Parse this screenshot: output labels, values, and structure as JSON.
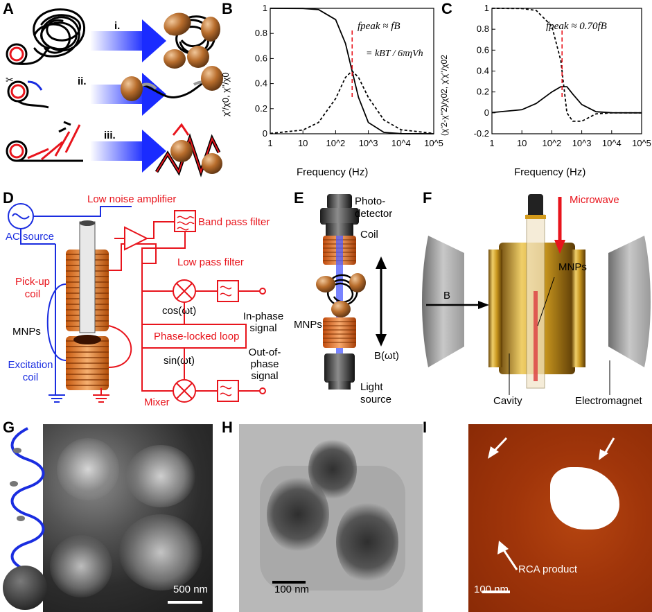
{
  "panels": {
    "A": "A",
    "B": "B",
    "C": "C",
    "D": "D",
    "E": "E",
    "F": "F",
    "G": "G",
    "H": "H",
    "I": "I"
  },
  "panelA": {
    "steps": [
      "i.",
      "ii.",
      "iii."
    ]
  },
  "panelB": {
    "ylabel": "χ'/χ0, χ''/χ0",
    "xlabel": "Frequency (Hz)",
    "annotation_line1": "fpeak ≈ fB",
    "annotation_line2": "= kBT / 6πηVh"
  },
  "panelC": {
    "ylabel": "(χ'2-χ''2)/χ02, χ'χ''/χ02",
    "xlabel": "Frequency (Hz)",
    "annotation": "fpeak ≈ 0.70fB"
  },
  "panelD": {
    "ac_source": "AC source",
    "low_noise_amplifier": "Low noise amplifier",
    "band_pass_filter": "Band pass filter",
    "low_pass_filter": "Low pass filter",
    "pickup_coil": "Pick-up coil",
    "mnps": "MNPs",
    "excitation_coil": "Excitation coil",
    "cos": "cos(ωt)",
    "in_phase": "In-phase signal",
    "pll": "Phase-locked loop",
    "sin": "sin(ωt)",
    "out_phase": "Out-of-phase signal",
    "mixer": "Mixer"
  },
  "panelE": {
    "photodetector": "Photo-detector",
    "coil": "Coil",
    "mnps": "MNPs",
    "field": "B(ωt)",
    "light_source": "Light source"
  },
  "panelF": {
    "microwave": "Microwave",
    "mnps": "MNPs",
    "b": "B",
    "cavity": "Cavity",
    "electromagnet": "Electromagnet"
  },
  "panelG": {
    "scale": "500 nm"
  },
  "panelH": {
    "scale": "100 nm"
  },
  "panelI": {
    "rca": "RCA product",
    "scale": "100 nm"
  },
  "chart_data": [
    {
      "type": "line",
      "panel": "B",
      "xscale": "log",
      "xlim": [
        1,
        100000
      ],
      "ylim": [
        0,
        1
      ],
      "xticks": [
        "1",
        "10",
        "10^2",
        "10^3",
        "10^4",
        "10^5"
      ],
      "yticks": [
        "0",
        "0.2",
        "0.4",
        "0.6",
        "0.8",
        "1"
      ],
      "fpeak_hz": 320,
      "series": [
        {
          "style": "solid",
          "x": [
            1,
            10,
            30,
            100,
            200,
            320,
            500,
            1000,
            3000,
            10000,
            100000
          ],
          "values": [
            1.0,
            0.999,
            0.99,
            0.91,
            0.72,
            0.5,
            0.29,
            0.09,
            0.011,
            0.001,
            0.0
          ]
        },
        {
          "style": "dashed",
          "x": [
            1,
            10,
            30,
            100,
            200,
            320,
            500,
            1000,
            3000,
            10000,
            100000
          ],
          "values": [
            0.003,
            0.03,
            0.09,
            0.28,
            0.45,
            0.5,
            0.45,
            0.29,
            0.11,
            0.032,
            0.003
          ]
        }
      ]
    },
    {
      "type": "line",
      "panel": "C",
      "xscale": "log",
      "xlim": [
        1,
        100000
      ],
      "ylim": [
        -0.2,
        1
      ],
      "xticks": [
        "1",
        "10",
        "10^2",
        "10^3",
        "10^4",
        "10^5"
      ],
      "yticks": [
        "-0.2",
        "0",
        "0.2",
        "0.4",
        "0.6",
        "0.8",
        "1"
      ],
      "fpeak_hz": 220,
      "series": [
        {
          "style": "dashed",
          "x": [
            1,
            10,
            30,
            100,
            200,
            320,
            500,
            1000,
            3000,
            10000,
            100000
          ],
          "values": [
            1.0,
            0.998,
            0.98,
            0.83,
            0.5,
            0.0,
            -0.08,
            -0.08,
            -0.01,
            0.0,
            0.0
          ]
        },
        {
          "style": "solid",
          "x": [
            1,
            10,
            30,
            100,
            200,
            320,
            500,
            1000,
            3000,
            10000,
            100000
          ],
          "values": [
            0.003,
            0.03,
            0.09,
            0.2,
            0.25,
            0.25,
            0.18,
            0.08,
            0.011,
            0.001,
            0.0
          ]
        }
      ]
    }
  ]
}
